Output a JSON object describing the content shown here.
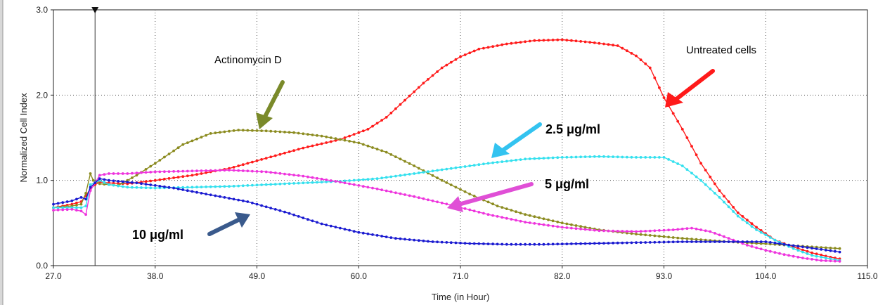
{
  "chart_data": {
    "type": "line",
    "title": "",
    "xlabel": "Time (in Hour)",
    "ylabel": "Normalized Cell Index",
    "xlim": [
      27.0,
      115.0
    ],
    "ylim": [
      0.0,
      3.0
    ],
    "x_ticks": [
      "27.0",
      "38.0",
      "49.0",
      "60.0",
      "71.0",
      "82.0",
      "93.0",
      "104.0",
      "115.0"
    ],
    "y_ticks": [
      "0.0",
      "1.0",
      "2.0",
      "3.0"
    ],
    "grid": true,
    "marker_time": 31.5,
    "series": [
      {
        "name": "Untreated cells",
        "color": "#ff1a1a",
        "points": [
          [
            27,
            0.68
          ],
          [
            29,
            0.72
          ],
          [
            30,
            0.75
          ],
          [
            30.5,
            0.82
          ],
          [
            31,
            0.9
          ],
          [
            31.5,
            0.95
          ],
          [
            32,
            0.98
          ],
          [
            33,
            0.97
          ],
          [
            35,
            0.96
          ],
          [
            38,
            1.0
          ],
          [
            42,
            1.06
          ],
          [
            46,
            1.14
          ],
          [
            50,
            1.26
          ],
          [
            54,
            1.38
          ],
          [
            58,
            1.48
          ],
          [
            61,
            1.6
          ],
          [
            63,
            1.74
          ],
          [
            65,
            1.94
          ],
          [
            67,
            2.14
          ],
          [
            69,
            2.32
          ],
          [
            71,
            2.45
          ],
          [
            73,
            2.54
          ],
          [
            76,
            2.6
          ],
          [
            79,
            2.64
          ],
          [
            82,
            2.65
          ],
          [
            85,
            2.62
          ],
          [
            88,
            2.58
          ],
          [
            90,
            2.46
          ],
          [
            91.5,
            2.32
          ],
          [
            93,
            1.97
          ],
          [
            95,
            1.6
          ],
          [
            97,
            1.2
          ],
          [
            99,
            0.88
          ],
          [
            101,
            0.62
          ],
          [
            103,
            0.45
          ],
          [
            105,
            0.3
          ],
          [
            107,
            0.22
          ],
          [
            109,
            0.15
          ],
          [
            111,
            0.1
          ],
          [
            112,
            0.08
          ]
        ]
      },
      {
        "name": "Actinomycin D",
        "color": "#8b8b1f",
        "points": [
          [
            27,
            0.68
          ],
          [
            29,
            0.7
          ],
          [
            30,
            0.72
          ],
          [
            30.5,
            0.85
          ],
          [
            31,
            1.08
          ],
          [
            31.3,
            1.0
          ],
          [
            32,
            0.96
          ],
          [
            34,
            0.94
          ],
          [
            36,
            1.06
          ],
          [
            38,
            1.2
          ],
          [
            41,
            1.42
          ],
          [
            44,
            1.55
          ],
          [
            47,
            1.59
          ],
          [
            50,
            1.58
          ],
          [
            53,
            1.56
          ],
          [
            56,
            1.52
          ],
          [
            60,
            1.44
          ],
          [
            63,
            1.33
          ],
          [
            66,
            1.17
          ],
          [
            69,
            1.0
          ],
          [
            72,
            0.84
          ],
          [
            75,
            0.7
          ],
          [
            78,
            0.6
          ],
          [
            82,
            0.5
          ],
          [
            86,
            0.42
          ],
          [
            90,
            0.37
          ],
          [
            95,
            0.32
          ],
          [
            100,
            0.28
          ],
          [
            105,
            0.25
          ],
          [
            109,
            0.22
          ],
          [
            112,
            0.2
          ]
        ]
      },
      {
        "name": "2.5 μg/ml",
        "color": "#33e0ee",
        "points": [
          [
            27,
            0.68
          ],
          [
            29,
            0.68
          ],
          [
            30,
            0.68
          ],
          [
            30.5,
            0.7
          ],
          [
            31,
            0.95
          ],
          [
            32,
            1.0
          ],
          [
            33,
            0.95
          ],
          [
            35,
            0.92
          ],
          [
            38,
            0.91
          ],
          [
            42,
            0.92
          ],
          [
            46,
            0.93
          ],
          [
            50,
            0.95
          ],
          [
            54,
            0.97
          ],
          [
            58,
            0.99
          ],
          [
            62,
            1.02
          ],
          [
            66,
            1.08
          ],
          [
            70,
            1.14
          ],
          [
            74,
            1.2
          ],
          [
            78,
            1.25
          ],
          [
            82,
            1.27
          ],
          [
            86,
            1.28
          ],
          [
            90,
            1.27
          ],
          [
            93,
            1.27
          ],
          [
            95,
            1.17
          ],
          [
            97,
            1.0
          ],
          [
            99,
            0.8
          ],
          [
            101,
            0.58
          ],
          [
            103,
            0.42
          ],
          [
            105,
            0.3
          ],
          [
            107,
            0.2
          ],
          [
            109,
            0.12
          ],
          [
            111,
            0.08
          ],
          [
            112,
            0.06
          ]
        ]
      },
      {
        "name": "5 μg/ml",
        "color": "#ee33dd",
        "points": [
          [
            27,
            0.65
          ],
          [
            29,
            0.66
          ],
          [
            30,
            0.64
          ],
          [
            30.5,
            0.6
          ],
          [
            31,
            0.88
          ],
          [
            32,
            1.06
          ],
          [
            33,
            1.08
          ],
          [
            35,
            1.08
          ],
          [
            38,
            1.1
          ],
          [
            42,
            1.11
          ],
          [
            46,
            1.12
          ],
          [
            50,
            1.1
          ],
          [
            54,
            1.05
          ],
          [
            58,
            0.98
          ],
          [
            62,
            0.9
          ],
          [
            66,
            0.81
          ],
          [
            70,
            0.71
          ],
          [
            74,
            0.6
          ],
          [
            78,
            0.51
          ],
          [
            82,
            0.45
          ],
          [
            86,
            0.41
          ],
          [
            90,
            0.4
          ],
          [
            94,
            0.42
          ],
          [
            96,
            0.44
          ],
          [
            98,
            0.4
          ],
          [
            100,
            0.32
          ],
          [
            102,
            0.24
          ],
          [
            104,
            0.18
          ],
          [
            106,
            0.13
          ],
          [
            108,
            0.09
          ],
          [
            110,
            0.06
          ],
          [
            112,
            0.05
          ]
        ]
      },
      {
        "name": "10 μg/ml",
        "color": "#1a1ad0",
        "points": [
          [
            27,
            0.72
          ],
          [
            29,
            0.76
          ],
          [
            30,
            0.8
          ],
          [
            30.5,
            0.78
          ],
          [
            31,
            0.92
          ],
          [
            32,
            1.02
          ],
          [
            33,
            1.0
          ],
          [
            36,
            0.97
          ],
          [
            40,
            0.91
          ],
          [
            44,
            0.83
          ],
          [
            48,
            0.75
          ],
          [
            52,
            0.63
          ],
          [
            56,
            0.49
          ],
          [
            60,
            0.39
          ],
          [
            64,
            0.32
          ],
          [
            68,
            0.28
          ],
          [
            72,
            0.26
          ],
          [
            76,
            0.25
          ],
          [
            80,
            0.25
          ],
          [
            85,
            0.26
          ],
          [
            90,
            0.27
          ],
          [
            95,
            0.28
          ],
          [
            100,
            0.28
          ],
          [
            104,
            0.28
          ],
          [
            108,
            0.22
          ],
          [
            112,
            0.16
          ]
        ]
      }
    ],
    "annotations": [
      {
        "text": "Untreated cells",
        "series": 0
      },
      {
        "text": "Actinomycin D",
        "series": 1
      },
      {
        "text": "2.5 μg/ml",
        "series": 2
      },
      {
        "text": "5 μg/ml",
        "series": 3
      },
      {
        "text": "10 μg/ml",
        "series": 4
      }
    ]
  }
}
